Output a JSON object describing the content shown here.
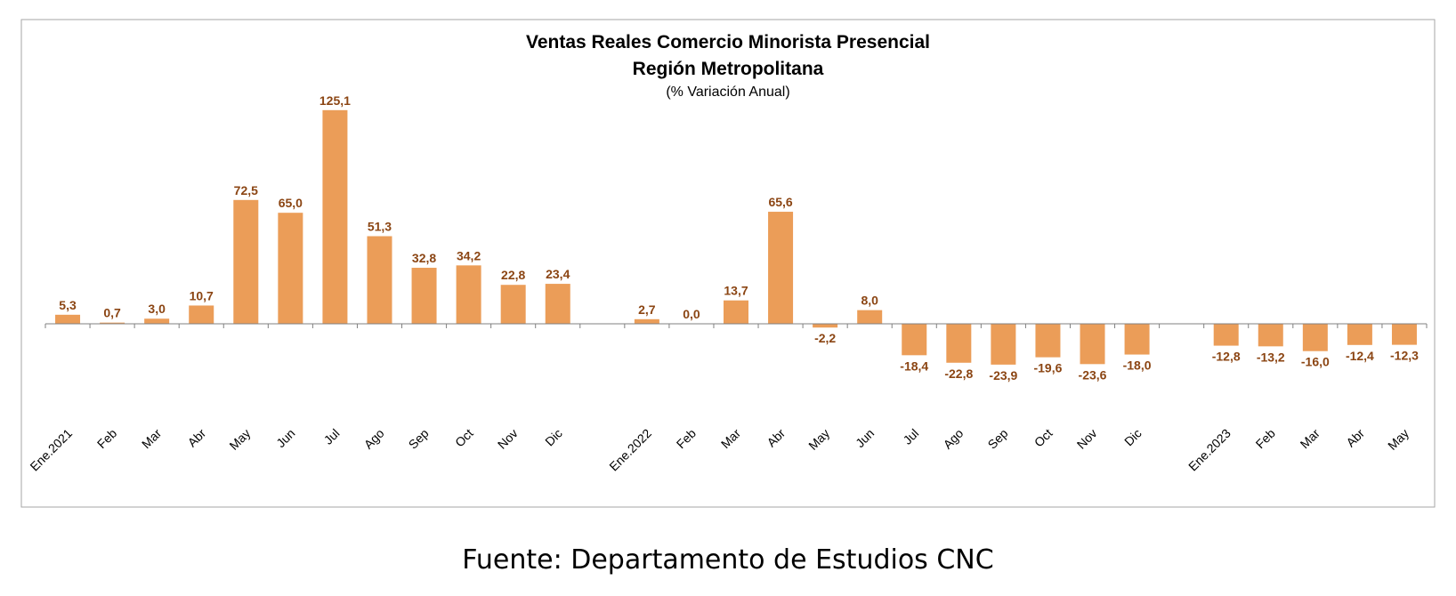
{
  "chart_data": {
    "type": "bar",
    "title": "Ventas Reales Comercio Minorista Presencial",
    "title_line2": "Región Metropolitana",
    "subtitle": "(% Variación Anual)",
    "categories": [
      "Ene.2021",
      "Feb",
      "Mar",
      "Abr",
      "May",
      "Jun",
      "Jul",
      "Ago",
      "Sep",
      "Oct",
      "Nov",
      "Dic",
      "",
      "Ene.2022",
      "Feb",
      "Mar",
      "Abr",
      "May",
      "Jun",
      "Jul",
      "Ago",
      "Sep",
      "Oct",
      "Nov",
      "Dic",
      "",
      "Ene.2023",
      "Feb",
      "Mar",
      "Abr",
      "May"
    ],
    "values": [
      5.3,
      0.7,
      3.0,
      10.7,
      72.5,
      65.0,
      125.1,
      51.3,
      32.8,
      34.2,
      22.8,
      23.4,
      null,
      2.7,
      0.0,
      13.7,
      65.6,
      -2.2,
      8.0,
      -18.4,
      -22.8,
      -23.9,
      -19.6,
      -23.6,
      -18.0,
      null,
      -12.8,
      -13.2,
      -16.0,
      -12.4,
      -12.3
    ],
    "labels": [
      "5,3",
      "0,7",
      "3,0",
      "10,7",
      "72,5",
      "65,0",
      "125,1",
      "51,3",
      "32,8",
      "34,2",
      "22,8",
      "23,4",
      "",
      "2,7",
      "0,0",
      "13,7",
      "65,6",
      "-2,2",
      "8,0",
      "-18,4",
      "-22,8",
      "-23,9",
      "-19,6",
      "-23,6",
      "-18,0",
      "",
      "-12,8",
      "-13,2",
      "-16,0",
      "-12,4",
      "-12,3"
    ],
    "bar_color": "#EB9D58",
    "label_color": "#8B4513",
    "grid": false,
    "legend": "none"
  },
  "source": "Fuente:  Departamento  de Estudios CNC"
}
